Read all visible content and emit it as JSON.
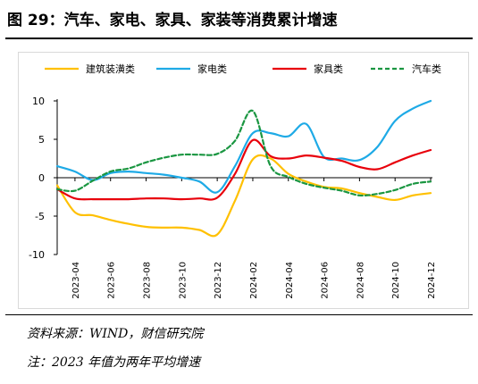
{
  "title": "图 29：汽车、家电、家具、家装等消费累计增速",
  "source": "资料来源：WIND，财信研究院",
  "footnote": "注：2023 年值为两年平均增速",
  "chart_data": {
    "type": "line",
    "x": [
      "2023-03",
      "2023-04",
      "2023-05",
      "2023-06",
      "2023-07",
      "2023-08",
      "2023-09",
      "2023-10",
      "2023-11",
      "2023-12",
      "2024-01",
      "2024-02",
      "2024-03",
      "2024-04",
      "2024-05",
      "2024-06",
      "2024-07",
      "2024-08",
      "2024-09",
      "2024-10",
      "2024-11",
      "2024-12"
    ],
    "xticks": [
      "2023-04",
      "2023-06",
      "2023-08",
      "2023-10",
      "2023-12",
      "2024-02",
      "2024-04",
      "2024-06",
      "2024-08",
      "2024-10",
      "2024-12"
    ],
    "ylim": [
      -10,
      10
    ],
    "yticks": [
      10,
      5,
      0,
      -5,
      -10
    ],
    "legend_position": "top",
    "series": [
      {
        "name": "建筑装潢类",
        "color": "#FFC000",
        "dash": false,
        "values": [
          -1.0,
          -4.5,
          -4.9,
          -5.5,
          -6.0,
          -6.4,
          -6.5,
          -6.5,
          -6.8,
          -7.4,
          -3.0,
          2.4,
          2.5,
          0.5,
          -0.5,
          -1.2,
          -1.4,
          -2.0,
          -2.5,
          -2.9,
          -2.3,
          -2.0
        ]
      },
      {
        "name": "家电类",
        "color": "#1EAAE6",
        "dash": false,
        "values": [
          1.5,
          0.8,
          -0.3,
          0.6,
          0.8,
          0.6,
          0.4,
          0.0,
          -0.5,
          -1.9,
          1.5,
          5.8,
          5.8,
          5.4,
          7.0,
          2.7,
          2.5,
          2.3,
          4.0,
          7.4,
          9.0,
          10.0
        ]
      },
      {
        "name": "家具类",
        "color": "#E8000B",
        "dash": false,
        "values": [
          -1.5,
          -2.7,
          -2.8,
          -2.8,
          -2.8,
          -2.7,
          -2.7,
          -2.8,
          -2.7,
          -2.6,
          0.5,
          4.9,
          2.8,
          2.5,
          2.9,
          2.6,
          2.2,
          1.4,
          1.1,
          2.0,
          2.9,
          3.6
        ]
      },
      {
        "name": "汽车类",
        "color": "#1A9641",
        "dash": true,
        "values": [
          -1.5,
          -1.7,
          -0.4,
          0.8,
          1.2,
          2.0,
          2.6,
          3.0,
          3.0,
          3.1,
          4.8,
          8.7,
          1.5,
          0.1,
          -0.8,
          -1.3,
          -1.7,
          -2.3,
          -2.1,
          -1.6,
          -0.8,
          -0.5
        ]
      }
    ]
  }
}
